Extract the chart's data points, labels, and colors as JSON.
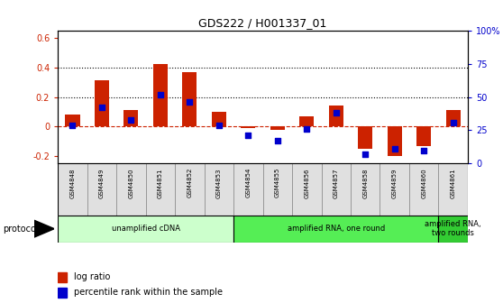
{
  "title": "GDS222 / H001337_01",
  "samples": [
    "GSM4848",
    "GSM4849",
    "GSM4850",
    "GSM4851",
    "GSM4852",
    "GSM4853",
    "GSM4854",
    "GSM4855",
    "GSM4856",
    "GSM4857",
    "GSM4858",
    "GSM4859",
    "GSM4860",
    "GSM4861"
  ],
  "log_ratio": [
    0.08,
    0.31,
    0.11,
    0.42,
    0.37,
    0.1,
    -0.01,
    -0.02,
    0.07,
    0.14,
    -0.15,
    -0.2,
    -0.13,
    0.11
  ],
  "percentile": [
    0.29,
    0.42,
    0.33,
    0.52,
    0.46,
    0.29,
    0.21,
    0.17,
    0.26,
    0.38,
    0.07,
    0.11,
    0.1,
    0.31
  ],
  "bar_color": "#cc2200",
  "dot_color": "#0000cc",
  "ylim_left": [
    -0.25,
    0.65
  ],
  "ylim_right": [
    0.0,
    1.0
  ],
  "yticks_left": [
    -0.2,
    0.0,
    0.2,
    0.4,
    0.6
  ],
  "yticks_right": [
    0.0,
    0.25,
    0.5,
    0.75,
    1.0
  ],
  "ytick_labels_left": [
    "-0.2",
    "0",
    "0.2",
    "0.4",
    "0.6"
  ],
  "ytick_labels_right": [
    "0",
    "25",
    "50",
    "75",
    "100%"
  ],
  "hlines": [
    0.2,
    0.4
  ],
  "hline_zero_color": "#cc2200",
  "hline_dotted_color": "#000000",
  "protocols": [
    {
      "label": "unamplified cDNA",
      "start": 0,
      "end": 5,
      "color": "#ccffcc"
    },
    {
      "label": "amplified RNA, one round",
      "start": 6,
      "end": 12,
      "color": "#55ee55"
    },
    {
      "label": "amplified RNA,\ntwo rounds",
      "start": 13,
      "end": 13,
      "color": "#33cc33"
    }
  ],
  "protocol_label": "protocol",
  "legend_bar_label": "log ratio",
  "legend_dot_label": "percentile rank within the sample",
  "bg_color": "#ffffff",
  "tick_label_color_left": "#cc2200",
  "tick_label_color_right": "#0000cc",
  "cell_bg": "#e0e0e0",
  "bar_width": 0.5
}
